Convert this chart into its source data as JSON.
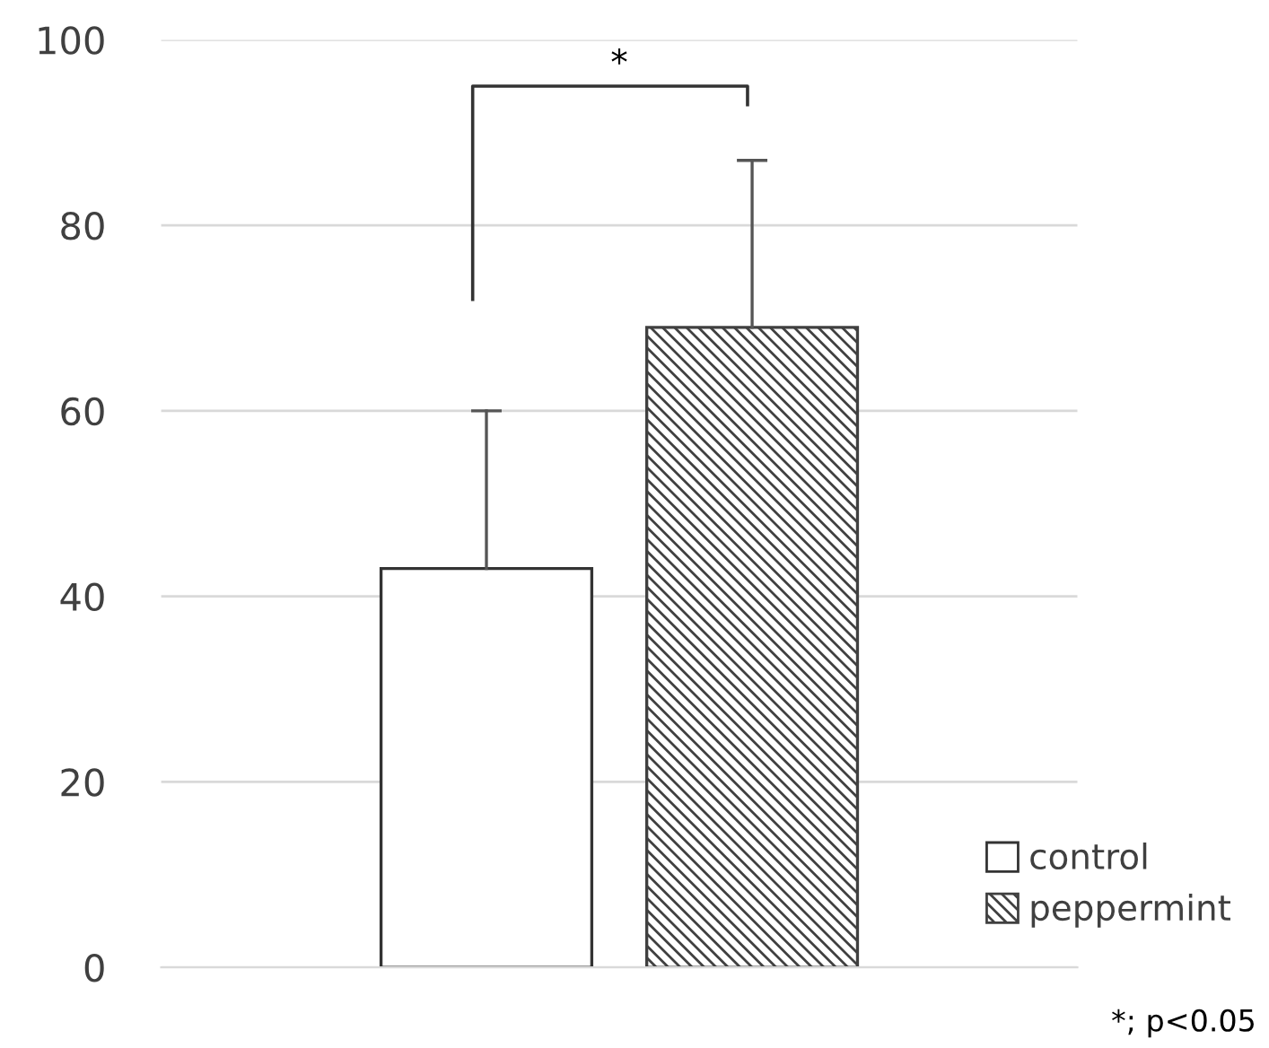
{
  "chart_data": {
    "type": "bar",
    "categories": [
      null
    ],
    "series": [
      {
        "name": "control",
        "color": "#ffffff",
        "values": [
          43
        ],
        "errors": [
          [
            43,
            60
          ]
        ]
      },
      {
        "name": "peppermint",
        "color": "#404040",
        "values": [
          69
        ],
        "errors": [
          [
            69,
            87
          ]
        ]
      }
    ],
    "ylim": [
      0,
      100
    ],
    "yticks": [
      0,
      20,
      40,
      60,
      80,
      100
    ],
    "grid": "y",
    "legend": "bottom right",
    "annotations": [
      "*",
      "*; p<0.05"
    ]
  }
}
